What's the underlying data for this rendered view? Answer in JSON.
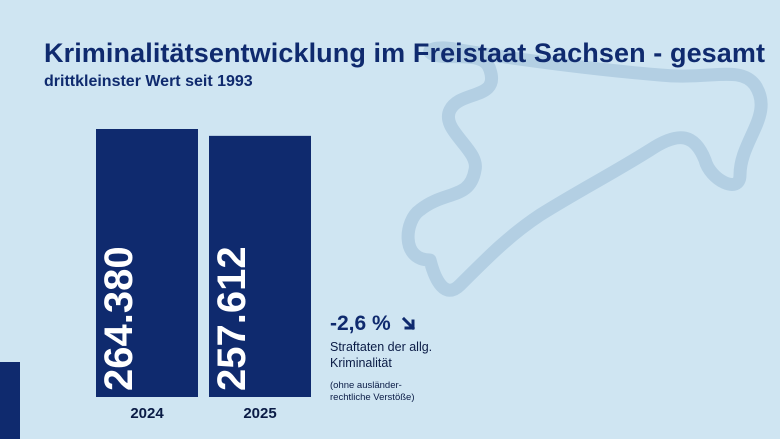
{
  "header": {
    "title": "Kriminalitätsentwicklung im Freistaat Sachsen - gesamt",
    "subtitle": "drittkleinster Wert seit 1993"
  },
  "annotation": {
    "change": "-2,6 %",
    "label": "Straftaten der allg. Kriminalität",
    "note": "(ohne ausländer-rechtliche Verstöße)",
    "arrow_icon": "arrow-down-right-icon"
  },
  "colors": {
    "background": "#cfe5f2",
    "bar": "#0f2a6e",
    "map_outline": "#b3cfe3"
  },
  "chart_data": {
    "type": "bar",
    "categories": [
      "2024",
      "2025"
    ],
    "values": [
      264380,
      257612
    ],
    "value_labels": [
      "264.380",
      "257.612"
    ],
    "title": "Kriminalitätsentwicklung im Freistaat Sachsen - gesamt",
    "subtitle": "drittkleinster Wert seit 1993",
    "xlabel": "",
    "ylabel": "",
    "grid": false,
    "legend": "none"
  }
}
